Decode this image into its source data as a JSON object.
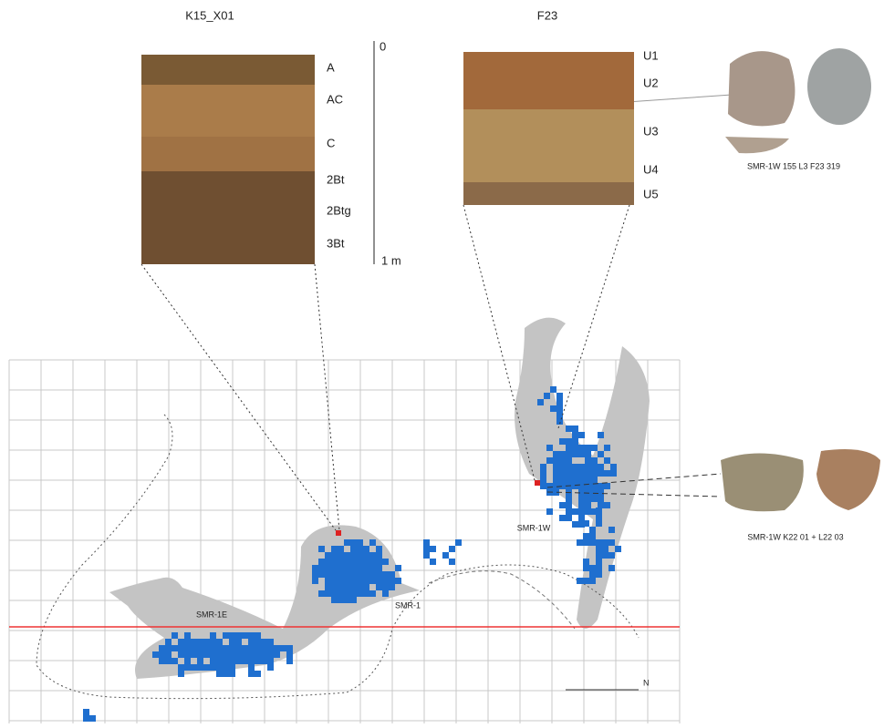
{
  "profiles": [
    {
      "title": "K15_X01",
      "horizons": [
        "A",
        "AC",
        "C",
        "2Bt",
        "2Btg",
        "3Bt"
      ]
    },
    {
      "title": "F23",
      "horizons": [
        "U1",
        "U2",
        "U3",
        "U4",
        "U5"
      ]
    }
  ],
  "scale": {
    "top": "0",
    "bottom": "1 m"
  },
  "artifacts": [
    {
      "caption": "SMR-1W 155 L3 F23 319"
    },
    {
      "caption": "SMR-1W K22 01 + L22 03"
    }
  ],
  "map": {
    "labels": [
      "SMR-1W",
      "SMR-1E",
      "SMR-1"
    ],
    "north": "N"
  }
}
